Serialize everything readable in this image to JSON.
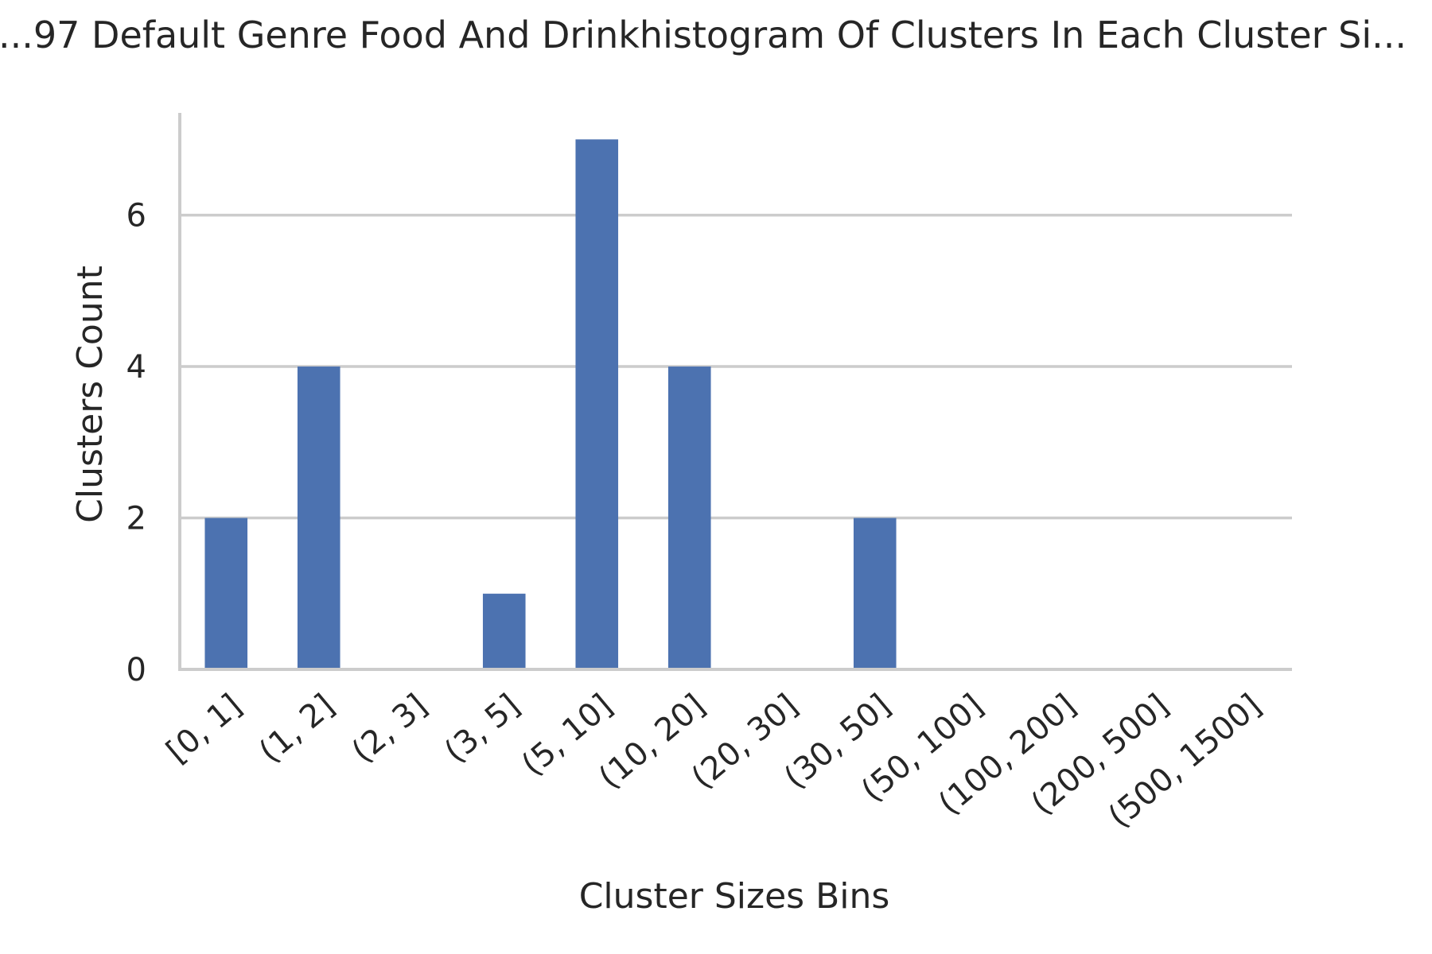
{
  "chart_data": {
    "type": "bar",
    "title": "...97 Default Genre Food And Drinkhistogram Of Clusters In Each Cluster Si...",
    "xlabel": "Cluster Sizes Bins",
    "ylabel": "Clusters Count",
    "categories": [
      "[0, 1]",
      "(1, 2]",
      "(2, 3]",
      "(3, 5]",
      "(5, 10]",
      "(10, 20]",
      "(20, 30]",
      "(30, 50]",
      "(50, 100]",
      "(100, 200]",
      "(200, 500]",
      "(500, 1500]"
    ],
    "values": [
      2,
      4,
      0,
      1,
      7,
      4,
      0,
      2,
      0,
      0,
      0,
      0
    ],
    "ylim": [
      0,
      7.35
    ],
    "yticks": [
      0,
      2,
      4,
      6
    ],
    "grid": "horizontal",
    "bar_color": "#4c72b0",
    "grid_color": "#cccccc",
    "text_color": "#262626"
  }
}
